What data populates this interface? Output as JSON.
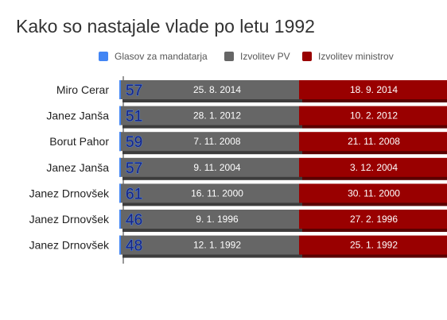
{
  "chart_data": {
    "type": "bar",
    "title": "Kako so nastajale vlade po letu 1992",
    "legend": [
      {
        "label": "Glasov za mandatarja",
        "color": "#4285f4"
      },
      {
        "label": "Izvolitev PV",
        "color": "#666666"
      },
      {
        "label": "Izvolitev ministrov",
        "color": "#990000"
      }
    ],
    "legend_position": "top",
    "categories": [
      "Miro Cerar",
      "Janez Janša",
      "Borut Pahor",
      "Janez Janša",
      "Janez Drnovšek",
      "Janez Drnovšek",
      "Janez Drnovšek"
    ],
    "series": [
      {
        "name": "Glasov za mandatarja",
        "values": [
          57,
          51,
          59,
          57,
          61,
          46,
          48
        ]
      },
      {
        "name": "Izvolitev PV",
        "values": [
          "25. 8. 2014",
          "28. 1. 2012",
          "7. 11. 2008",
          "9. 11. 2004",
          "16. 11. 2000",
          "9. 1. 1996",
          "12. 1. 1992"
        ]
      },
      {
        "name": "Izvolitev ministrov",
        "values": [
          "18. 9. 2014",
          "10. 2. 2012",
          "21. 11. 2008",
          "3. 12. 2004",
          "30. 11. 2000",
          "27. 2. 1996",
          "25. 1. 1992"
        ]
      }
    ],
    "grid": false
  }
}
